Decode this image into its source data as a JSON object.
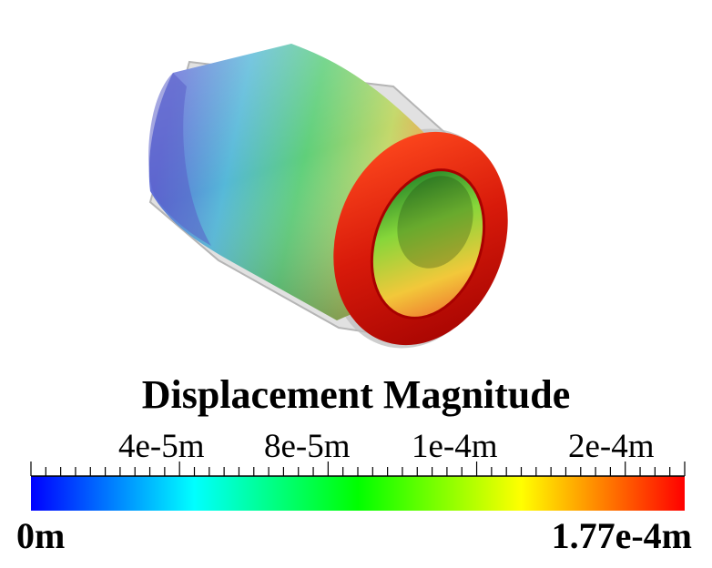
{
  "legend": {
    "title": "Displacement Magnitude",
    "ticks": [
      "4e-5m",
      "8e-5m",
      "1e-4m",
      "2e-4m"
    ],
    "min_label": "0m",
    "max_label": "1.77e-4m",
    "colormap": [
      "#0000ff",
      "#00ffff",
      "#00ff00",
      "#ffff00",
      "#ff0000"
    ]
  },
  "colors": {
    "outer_wall": "#8b0000",
    "ghost_shell": "#c8c8c8"
  }
}
